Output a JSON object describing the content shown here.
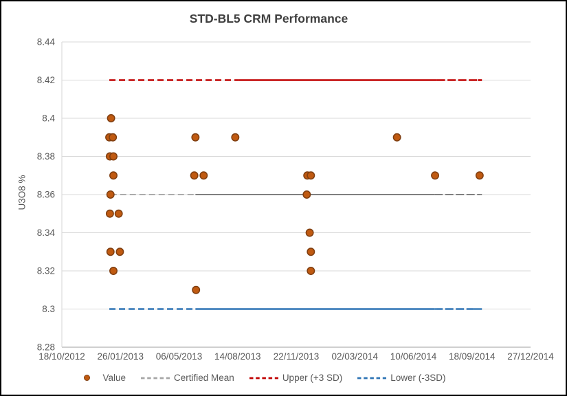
{
  "chart_data": {
    "type": "scatter",
    "title": "STD-BL5 CRM Performance",
    "ylabel": "U3O8 %",
    "grid": true,
    "legend_position": "bottom",
    "x_axis": {
      "start": "2012-10-18",
      "end": "2014-12-27",
      "tick_labels": [
        "18/10/2012",
        "26/01/2013",
        "06/05/2013",
        "14/08/2013",
        "22/11/2013",
        "02/03/2014",
        "10/06/2014",
        "18/09/2014",
        "27/12/2014"
      ]
    },
    "y_axis": {
      "min": 8.28,
      "max": 8.44,
      "step": 0.02,
      "tick_labels": [
        "8.44",
        "8.42",
        "8.4",
        "8.38",
        "8.36",
        "8.34",
        "8.32",
        "8.3",
        "8.28"
      ]
    },
    "series": [
      {
        "name": "Value",
        "color": "#C05A11",
        "border": "#7F3E10",
        "points": [
          {
            "date": "2013-01-07",
            "value": 8.39
          },
          {
            "date": "2013-01-08",
            "value": 8.38
          },
          {
            "date": "2013-01-08",
            "value": 8.35
          },
          {
            "date": "2013-01-09",
            "value": 8.36
          },
          {
            "date": "2013-01-09",
            "value": 8.33
          },
          {
            "date": "2013-01-10",
            "value": 8.4
          },
          {
            "date": "2013-01-13",
            "value": 8.39
          },
          {
            "date": "2013-01-14",
            "value": 8.38
          },
          {
            "date": "2013-01-14",
            "value": 8.37
          },
          {
            "date": "2013-01-14",
            "value": 8.32
          },
          {
            "date": "2013-01-23",
            "value": 8.35
          },
          {
            "date": "2013-01-25",
            "value": 8.33
          },
          {
            "date": "2013-06-01",
            "value": 8.37
          },
          {
            "date": "2013-06-03",
            "value": 8.39
          },
          {
            "date": "2013-06-04",
            "value": 8.31
          },
          {
            "date": "2013-06-17",
            "value": 8.37
          },
          {
            "date": "2013-08-10",
            "value": 8.39
          },
          {
            "date": "2013-12-10",
            "value": 8.36
          },
          {
            "date": "2013-12-11",
            "value": 8.37
          },
          {
            "date": "2013-12-15",
            "value": 8.34
          },
          {
            "date": "2013-12-17",
            "value": 8.37
          },
          {
            "date": "2013-12-17",
            "value": 8.33
          },
          {
            "date": "2013-12-17",
            "value": 8.32
          },
          {
            "date": "2014-05-13",
            "value": 8.39
          },
          {
            "date": "2014-07-17",
            "value": 8.37
          },
          {
            "date": "2014-10-01",
            "value": 8.37
          }
        ]
      }
    ],
    "ref_lines": [
      {
        "id": "upper-limit",
        "name": "Upper (+3 SD)",
        "value": 8.42,
        "color": "#C00000",
        "dash_color": "#C00000",
        "width": 2.6,
        "start": "2013-01-07",
        "dash_until": "2013-08-15",
        "redash_from": "2014-07-20",
        "redash_to": "2014-09-28",
        "end": "2014-10-05"
      },
      {
        "id": "certified-mean",
        "name": "Certified Mean",
        "value": 8.36,
        "color": "#7F7F7F",
        "dash_color": "#ABABAB",
        "width": 1.9,
        "start": "2013-01-09",
        "dash_until": "2013-06-03",
        "redash_from": "2014-07-16",
        "redash_to": "2014-10-02",
        "end": "2014-10-05"
      },
      {
        "id": "lower-limit",
        "name": "Lower (-3SD)",
        "value": 8.3,
        "color": "#2E74B5",
        "dash_color": "#2E74B5",
        "width": 2.4,
        "start": "2013-01-07",
        "dash_until": "2013-06-03",
        "redash_from": "2014-07-16",
        "redash_to": "2014-09-20",
        "end": "2014-10-05"
      }
    ],
    "legend": [
      {
        "label": "Value",
        "type": "marker",
        "color": "#C05A11",
        "border": "#7F3E10"
      },
      {
        "label": "Certified Mean",
        "type": "dash",
        "color": "#A6A6A6"
      },
      {
        "label": "Upper (+3 SD)",
        "type": "dash",
        "color": "#C00000"
      },
      {
        "label": "Lower (-3SD)",
        "type": "dash",
        "color": "#2E74B5"
      }
    ],
    "colors": {
      "gridline": "#D9D9D9",
      "axis_line": "#BFBFBF",
      "tick_text": "#595959",
      "title_text": "#3F3F3F"
    }
  }
}
